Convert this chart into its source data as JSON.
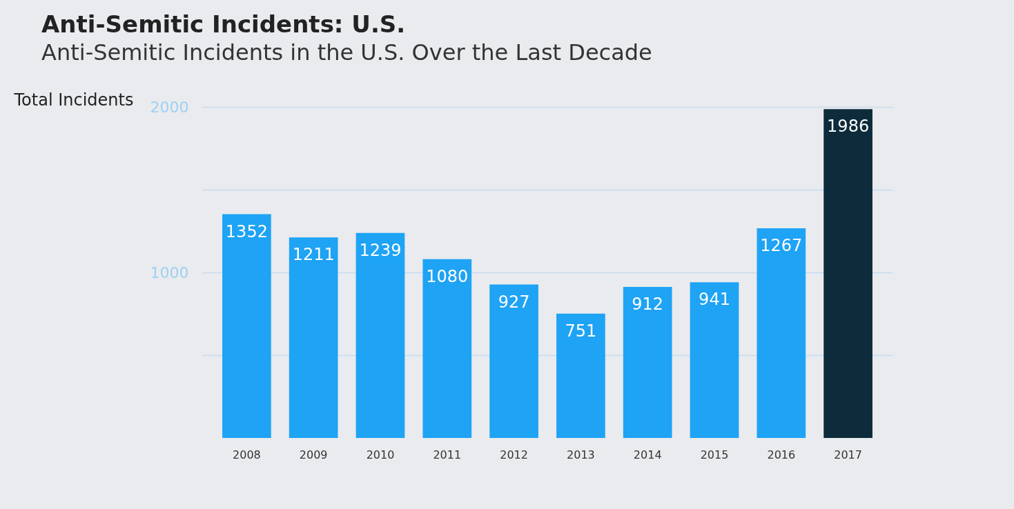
{
  "chart_data": {
    "type": "bar",
    "title": "Anti-Semitic Incidents: U.S.",
    "subtitle": "Anti-Semitic Incidents in the U.S. Over the Last Decade",
    "ylabel": "Total Incidents",
    "categories": [
      "2008",
      "2009",
      "2010",
      "2011",
      "2012",
      "2013",
      "2014",
      "2015",
      "2016",
      "2017"
    ],
    "values": [
      1352,
      1211,
      1239,
      1080,
      927,
      751,
      912,
      941,
      1267,
      1986
    ],
    "colors": [
      "#1ea3f5",
      "#1ea3f5",
      "#1ea3f5",
      "#1ea3f5",
      "#1ea3f5",
      "#1ea3f5",
      "#1ea3f5",
      "#1ea3f5",
      "#1ea3f5",
      "#0d2b3a"
    ],
    "ylim": [
      0,
      2000
    ],
    "yticks": [
      {
        "value": 500,
        "label": null
      },
      1000,
      {
        "value": 1500,
        "label": null
      },
      2000
    ],
    "grid": "y",
    "data_labels": true
  }
}
